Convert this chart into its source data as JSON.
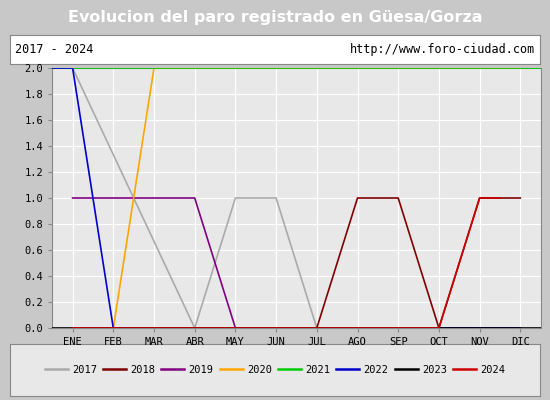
{
  "title": "Evolucion del paro registrado en Güesa/Gorza",
  "subtitle_left": "2017 - 2024",
  "subtitle_right": "http://www.foro-ciudad.com",
  "xlabel_months": [
    "ENE",
    "FEB",
    "MAR",
    "ABR",
    "MAY",
    "JUN",
    "JUL",
    "AGO",
    "SEP",
    "OCT",
    "NOV",
    "DIC"
  ],
  "ylim": [
    0.0,
    2.0
  ],
  "yticks": [
    0.0,
    0.2,
    0.4,
    0.6,
    0.8,
    1.0,
    1.2,
    1.4,
    1.6,
    1.8,
    2.0
  ],
  "title_bg_color": "#4a7fc1",
  "title_text_color": "#ffffff",
  "plot_bg_color": "#e8e8e8",
  "grid_color": "#ffffff",
  "subtitle_bg_color": "#ffffff",
  "legend_bg_color": "#e8e8e8",
  "outer_bg_color": "#c8c8c8",
  "series": [
    {
      "label": "2017",
      "color": "#aaaaaa",
      "x": [
        -0.5,
        0,
        3,
        4,
        5,
        6,
        11
      ],
      "y": [
        2,
        2,
        0,
        1,
        1,
        0,
        0
      ]
    },
    {
      "label": "2018",
      "color": "#800000",
      "x": [
        0,
        6,
        7,
        8,
        9,
        10,
        11
      ],
      "y": [
        0,
        0,
        1,
        1,
        0,
        1,
        1
      ]
    },
    {
      "label": "2019",
      "color": "#800080",
      "x": [
        0,
        1,
        2,
        3,
        4,
        11
      ],
      "y": [
        1,
        1,
        1,
        1,
        0,
        0
      ]
    },
    {
      "label": "2020",
      "color": "#ffa500",
      "x": [
        0,
        1,
        2,
        11
      ],
      "y": [
        0,
        0,
        2,
        2
      ]
    },
    {
      "label": "2021",
      "color": "#00cc00",
      "x": [
        -0.5,
        11.5
      ],
      "y": [
        2,
        2
      ]
    },
    {
      "label": "2022",
      "color": "#0000cc",
      "x": [
        -0.5,
        0,
        1,
        11
      ],
      "y": [
        2,
        2,
        0,
        0
      ]
    },
    {
      "label": "2023",
      "color": "#000000",
      "x": [
        -0.5,
        11.5
      ],
      "y": [
        0,
        0
      ]
    },
    {
      "label": "2024",
      "color": "#cc0000",
      "x": [
        0,
        9,
        10,
        10.5
      ],
      "y": [
        0,
        0,
        1,
        1
      ]
    }
  ]
}
